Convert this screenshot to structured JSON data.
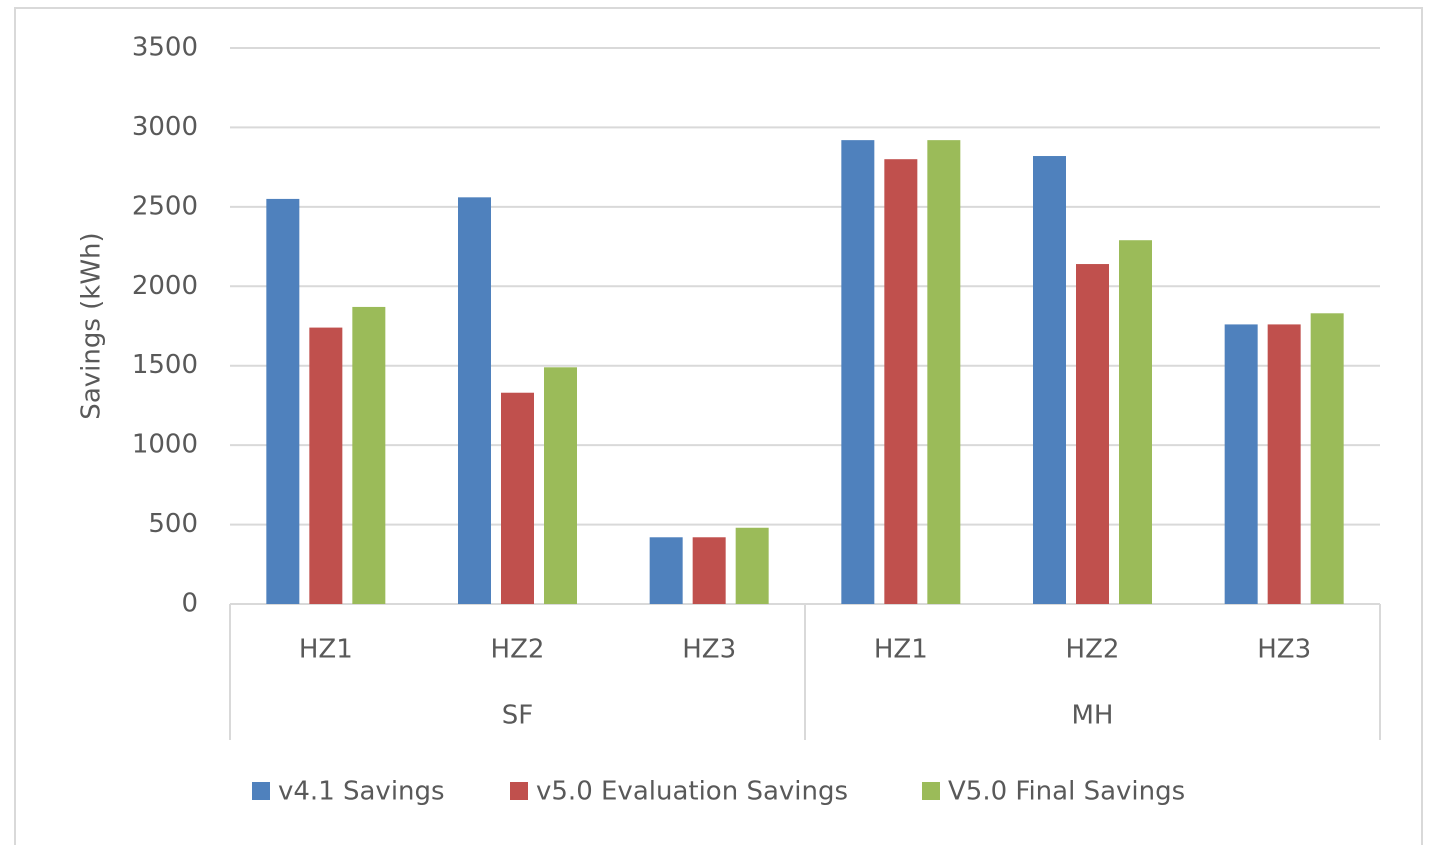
{
  "chart_data": {
    "type": "bar",
    "y_label": "Savings (kWh)",
    "groups": [
      {
        "name": "SF",
        "categories": [
          "HZ1",
          "HZ2",
          "HZ3"
        ]
      },
      {
        "name": "MH",
        "categories": [
          "HZ1",
          "HZ2",
          "HZ3"
        ]
      }
    ],
    "series": [
      {
        "name": "v4.1 Savings",
        "color": "#4f81bd",
        "values": [
          2550,
          2560,
          420,
          2920,
          2820,
          1760
        ]
      },
      {
        "name": "v5.0 Evaluation Savings",
        "color": "#c0504d",
        "values": [
          1740,
          1330,
          420,
          2800,
          2140,
          1760
        ]
      },
      {
        "name": "V5.0 Final Savings",
        "color": "#9bbb59",
        "values": [
          1870,
          1490,
          480,
          2920,
          2290,
          1830
        ]
      }
    ],
    "ylim": [
      0,
      3500
    ],
    "yticks": [
      0,
      500,
      1000,
      1500,
      2000,
      2500,
      3000,
      3500
    ],
    "grid": true,
    "legend": "bottom"
  }
}
